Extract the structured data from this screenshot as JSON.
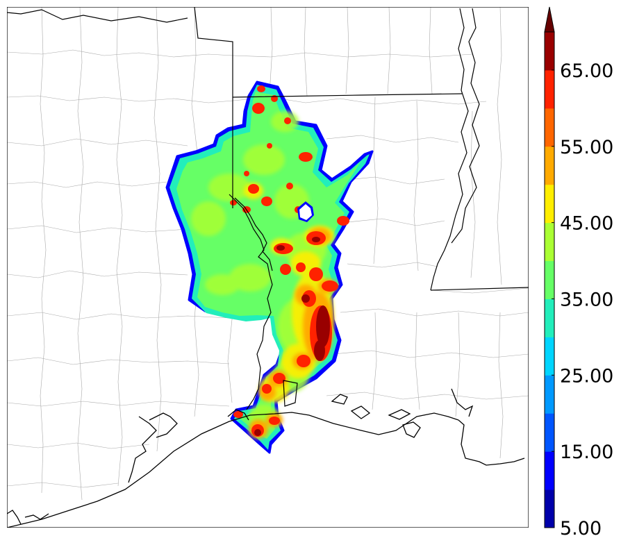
{
  "map": {
    "field_palette": [
      "#0000aa",
      "#0000ff",
      "#0055ff",
      "#0099ff",
      "#00d5ff",
      "#22eebb",
      "#66ff66",
      "#aaff33",
      "#ffee00",
      "#ffaa00",
      "#ff6600",
      "#ff2200",
      "#990000"
    ]
  },
  "colorbar": {
    "levels": [
      5,
      10,
      15,
      20,
      25,
      30,
      35,
      40,
      45,
      50,
      55,
      60,
      65,
      70
    ],
    "colors": [
      "#0000aa",
      "#0000ff",
      "#0055ff",
      "#0099ff",
      "#00d5ff",
      "#22eebb",
      "#66ff66",
      "#aaff33",
      "#ffee00",
      "#ffaa00",
      "#ff6600",
      "#ff2200",
      "#990000"
    ],
    "extend_color": "#660000",
    "tick_labels": [
      "5.00",
      "15.00",
      "25.00",
      "35.00",
      "45.00",
      "55.00",
      "65.00"
    ]
  }
}
